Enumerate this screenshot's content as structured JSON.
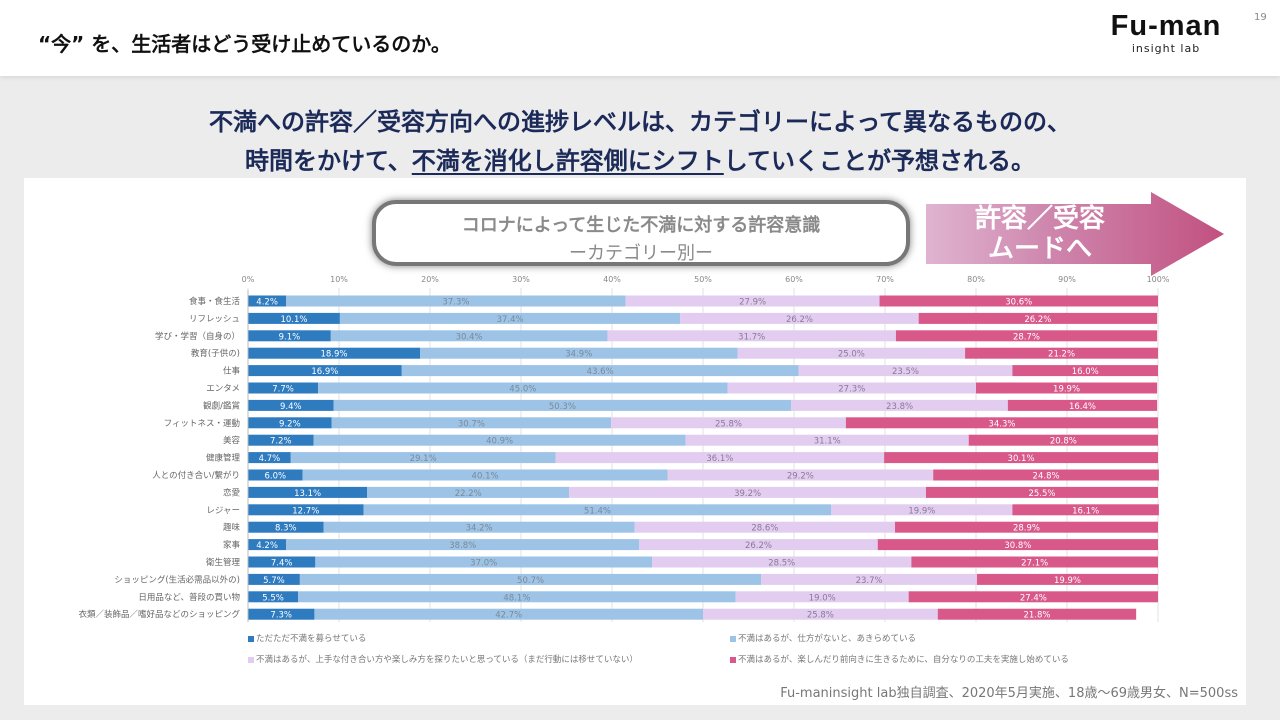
{
  "header": {
    "title": "“今” を、生活者はどう受け止めているのか。",
    "logo_main": "Fu-man",
    "logo_sub": "insight lab",
    "page_number": "19"
  },
  "headline": {
    "line1": "不満への許容／受容方向への進捗レベルは、カテゴリーによって異なるものの、",
    "line2_pre": "時間をかけて、",
    "line2_underline": "不満を消化し許容側にシフト",
    "line2_post": "していくことが予想される。"
  },
  "chart_title": {
    "line1": "コロナによって生じた不満に対する許容意識",
    "line2": "ーカテゴリー別ー"
  },
  "arrow_label": {
    "line1": "許容／受容",
    "line2": "ムードへ"
  },
  "source": "Fu-maninsight lab独自調査、2020年5月実施、18歳～69歳男女、N=500ss",
  "colors": {
    "s1": "#2e7bc0",
    "s2": "#9dc3e6",
    "s3": "#e2cdf0",
    "s4": "#d9588a"
  },
  "chart_data": {
    "type": "bar",
    "orientation": "horizontal-stacked-100",
    "xlim": [
      0,
      100
    ],
    "x_ticks": [
      "0%",
      "10%",
      "20%",
      "30%",
      "40%",
      "50%",
      "60%",
      "70%",
      "80%",
      "90%",
      "100%"
    ],
    "grid": true,
    "legend_position": "bottom",
    "categories": [
      "食事・食生活",
      "リフレッシュ",
      "学び・学習（自身の）",
      "教育(子供の)",
      "仕事",
      "エンタメ",
      "観劇/鑑賞",
      "フィットネス・運動",
      "美容",
      "健康管理",
      "人との付き合い/繋がり",
      "恋愛",
      "レジャー",
      "趣味",
      "家事",
      "衛生管理",
      "ショッピング(生活必需品以外の)",
      "日用品など、普段の買い物",
      "衣類／装飾品／嗜好品などのショッピング"
    ],
    "series": [
      {
        "name": "ただただ不満を募らせている",
        "values": [
          4.2,
          10.1,
          9.1,
          18.9,
          16.9,
          7.7,
          9.4,
          9.2,
          7.2,
          4.7,
          6.0,
          13.1,
          12.7,
          8.3,
          4.2,
          7.4,
          5.7,
          5.5,
          7.3
        ]
      },
      {
        "name": "不満はあるが、仕方がないと、あきらめている",
        "values": [
          37.3,
          37.4,
          30.4,
          34.9,
          43.6,
          45.0,
          50.3,
          30.7,
          40.9,
          29.1,
          40.1,
          22.2,
          51.4,
          34.2,
          38.8,
          37.0,
          50.7,
          48.1,
          42.7
        ]
      },
      {
        "name": "不満はあるが、上手な付き合い方や楽しみ方を探りたいと思っている（まだ行動には移せていない）",
        "values": [
          27.9,
          26.2,
          31.7,
          25.0,
          23.5,
          27.3,
          23.8,
          25.8,
          31.1,
          36.1,
          29.2,
          39.2,
          19.9,
          28.6,
          26.2,
          28.5,
          23.7,
          19.0,
          25.8
        ]
      },
      {
        "name": "不満はあるが、楽しんだり前向きに生きるために、自分なりの工夫を実施し始めている",
        "values": [
          30.6,
          26.2,
          28.7,
          21.2,
          16.0,
          19.9,
          16.4,
          34.3,
          20.8,
          30.1,
          24.8,
          25.5,
          16.1,
          28.9,
          30.8,
          27.1,
          19.9,
          27.4,
          21.8
        ]
      }
    ]
  }
}
